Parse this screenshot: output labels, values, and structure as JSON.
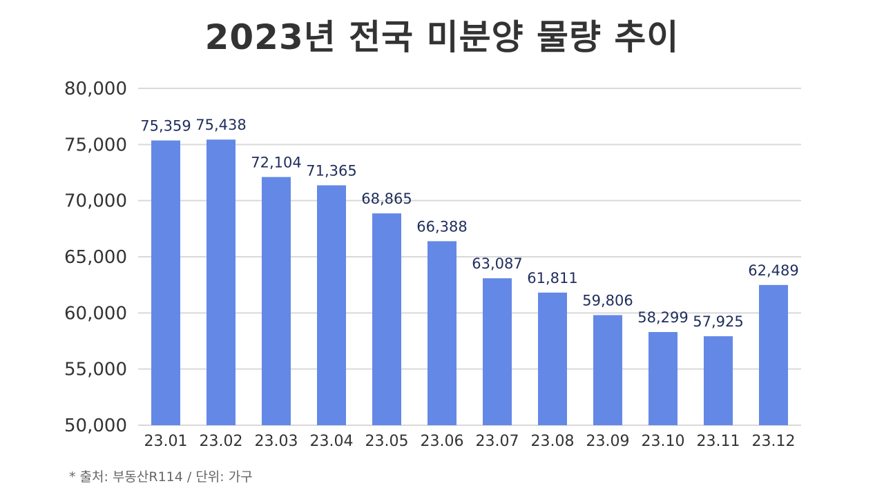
{
  "chart_data": {
    "type": "bar",
    "title": "2023년 전국 미분양 물량 추이",
    "categories": [
      "23.01",
      "23.02",
      "23.03",
      "23.04",
      "23.05",
      "23.06",
      "23.07",
      "23.08",
      "23.09",
      "23.10",
      "23.11",
      "23.12"
    ],
    "values": [
      75359,
      75438,
      72104,
      71365,
      68865,
      66388,
      63087,
      61811,
      59806,
      58299,
      57925,
      62489
    ],
    "value_labels": [
      "75,359",
      "75,438",
      "72,104",
      "71,365",
      "68,865",
      "66,388",
      "63,087",
      "61,811",
      "59,806",
      "58,299",
      "57,925",
      "62,489"
    ],
    "ylim": [
      50000,
      80000
    ],
    "yticks": [
      50000,
      55000,
      60000,
      65000,
      70000,
      75000,
      80000
    ],
    "ytick_labels": [
      "50,000",
      "55,000",
      "60,000",
      "65,000",
      "70,000",
      "75,000",
      "80,000"
    ],
    "xlabel": "",
    "ylabel": "",
    "grid": true,
    "bar_color": "#6488e6",
    "grid_color": "#d9d9d9",
    "value_label_color": "#1f2d5c"
  },
  "source_note": "* 출처: 부동산R114 / 단위: 가구"
}
